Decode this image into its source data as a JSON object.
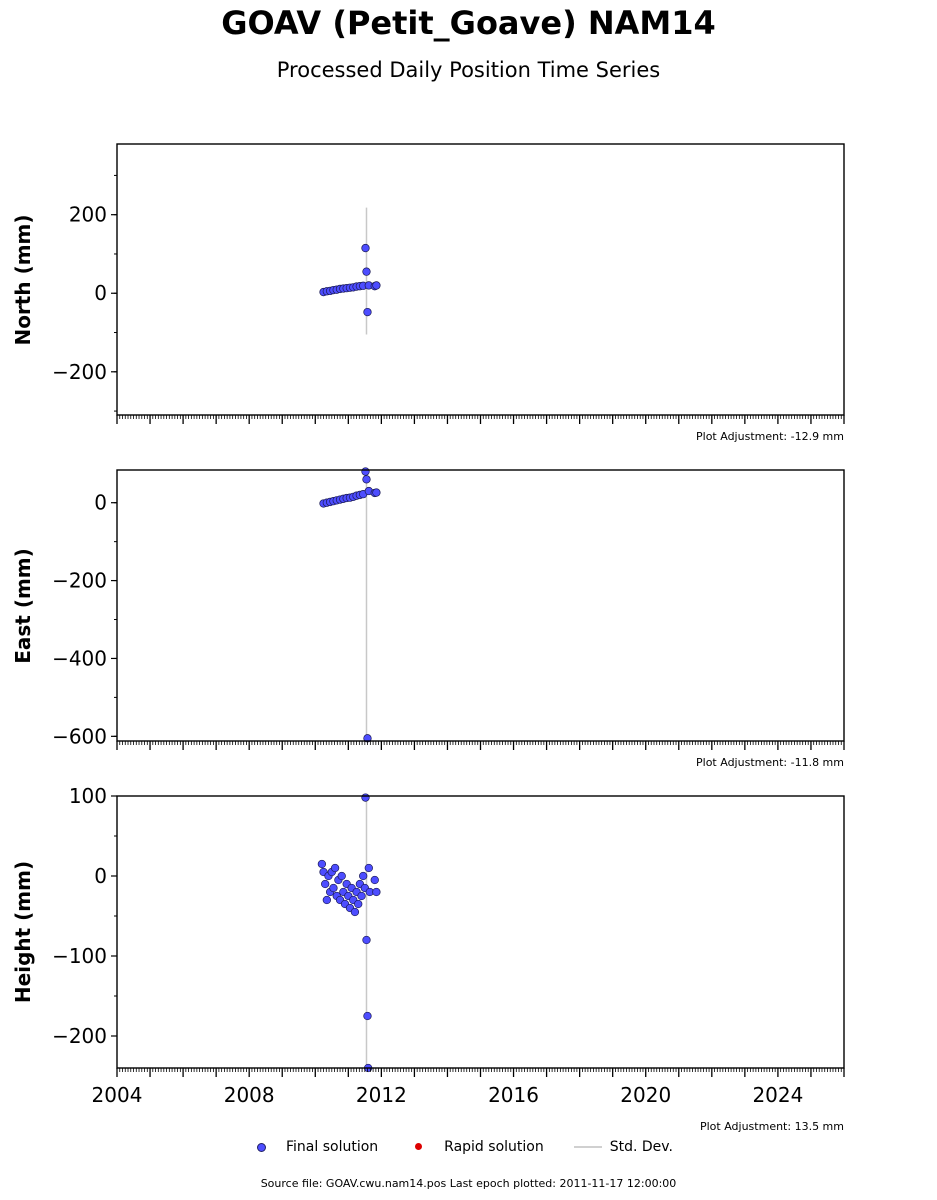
{
  "title": "GOAV (Petit_Goave) NAM14",
  "subtitle": "Processed Daily Position Time Series",
  "legend": {
    "final": "Final solution",
    "rapid": "Rapid solution",
    "stddev": "Std. Dev."
  },
  "source_note": "Source file: GOAV.cwu.nam14.pos  Last epoch plotted: 2011-11-17 12:00:00",
  "colors": {
    "final": "#4d4dff",
    "rapid": "#dd0000",
    "stddev": "#c8c8c8"
  },
  "chart_data": [
    {
      "type": "scatter",
      "ylabel": "North (mm)",
      "adjustment": "Plot Adjustment: -12.9 mm",
      "xlim": [
        2004,
        2026
      ],
      "ylim": [
        -310,
        380
      ],
      "yticks": [
        200,
        0,
        -200
      ],
      "ytick_labels": [
        "200",
        "0",
        "−200"
      ],
      "series": [
        {
          "x": [
            2010.25,
            2010.35,
            2010.45,
            2010.55,
            2010.65,
            2010.75,
            2010.85,
            2010.95,
            2011.05,
            2011.15,
            2011.25,
            2011.35,
            2011.45,
            2011.52,
            2011.55,
            2011.58,
            2011.62,
            2011.8,
            2011.85
          ],
          "y": [
            3,
            5,
            6,
            8,
            9,
            11,
            12,
            13,
            14,
            15,
            17,
            18,
            19,
            115,
            55,
            -48,
            20,
            18,
            20
          ]
        }
      ],
      "errors": [
        {
          "x": 2011.55,
          "low": -105,
          "high": 218
        }
      ]
    },
    {
      "type": "scatter",
      "ylabel": "East (mm)",
      "adjustment": "Plot Adjustment: -11.8 mm",
      "xlim": [
        2004,
        2026
      ],
      "ylim": [
        -612,
        84
      ],
      "yticks": [
        0,
        -200,
        -400,
        -600
      ],
      "ytick_labels": [
        "0",
        "−200",
        "−400",
        "−600"
      ],
      "series": [
        {
          "x": [
            2010.25,
            2010.35,
            2010.45,
            2010.55,
            2010.65,
            2010.75,
            2010.85,
            2010.95,
            2011.05,
            2011.15,
            2011.25,
            2011.35,
            2011.45,
            2011.52,
            2011.55,
            2011.58,
            2011.62,
            2011.8,
            2011.85
          ],
          "y": [
            -2,
            0,
            2,
            4,
            6,
            8,
            10,
            12,
            13,
            15,
            18,
            20,
            22,
            80,
            60,
            -605,
            30,
            25,
            26
          ]
        }
      ],
      "errors": [
        {
          "x": 2011.55,
          "low": -612,
          "high": 84
        }
      ]
    },
    {
      "type": "scatter",
      "xlabel": "",
      "ylabel": "Height (mm)",
      "adjustment": "Plot Adjustment: 13.5 mm",
      "xlim": [
        2004,
        2026
      ],
      "ylim": [
        -240,
        100
      ],
      "yticks": [
        100,
        0,
        -100,
        -200
      ],
      "ytick_labels": [
        "100",
        "0",
        "−100",
        "−200"
      ],
      "xticks": [
        2004,
        2008,
        2012,
        2016,
        2020,
        2024
      ],
      "xtick_labels": [
        "2004",
        "2008",
        "2012",
        "2016",
        "2020",
        "2024"
      ],
      "series": [
        {
          "x": [
            2010.2,
            2010.25,
            2010.3,
            2010.35,
            2010.4,
            2010.45,
            2010.5,
            2010.55,
            2010.6,
            2010.65,
            2010.7,
            2010.75,
            2010.8,
            2010.85,
            2010.9,
            2010.95,
            2011.0,
            2011.05,
            2011.1,
            2011.15,
            2011.2,
            2011.25,
            2011.3,
            2011.35,
            2011.4,
            2011.45,
            2011.5,
            2011.52,
            2011.55,
            2011.58,
            2011.6,
            2011.62,
            2011.65,
            2011.8,
            2011.85
          ],
          "y": [
            15,
            5,
            -10,
            -30,
            0,
            -20,
            5,
            -15,
            10,
            -25,
            -5,
            -30,
            0,
            -20,
            -35,
            -10,
            -25,
            -40,
            -15,
            -30,
            -45,
            -20,
            -35,
            -10,
            -25,
            0,
            -15,
            98,
            -80,
            -175,
            -240,
            10,
            -20,
            -5,
            -20
          ]
        }
      ],
      "errors": [
        {
          "x": 2011.55,
          "low": -240,
          "high": 100
        }
      ]
    }
  ]
}
